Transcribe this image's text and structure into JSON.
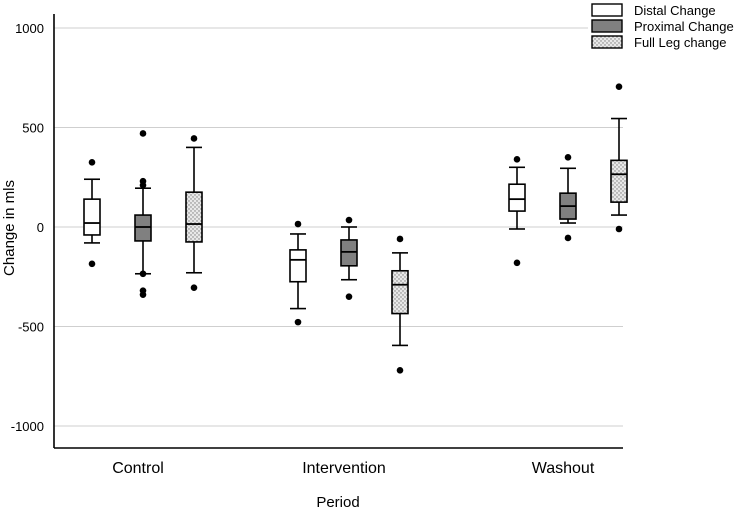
{
  "chart_data": {
    "type": "boxplot",
    "title": "",
    "xlabel": "Period",
    "ylabel": "Change in mls",
    "ylim": [
      -1100,
      1100
    ],
    "yticks": [
      1000,
      500,
      0,
      -500,
      -1000
    ],
    "ytick_labels": [
      "1000",
      "500",
      "0",
      "-500",
      "-1000"
    ],
    "grid": true,
    "legend_position": "top-right",
    "categories": [
      "Control",
      "Intervention",
      "Washout"
    ],
    "series": [
      {
        "name": "Distal Change",
        "fill": "#ffffff",
        "pattern": "none",
        "boxes": [
          {
            "whisker_low": -80,
            "q1": -40,
            "median": 20,
            "q3": 140,
            "whisker_high": 240,
            "outliers": [
              325,
              -185
            ]
          },
          {
            "whisker_low": -410,
            "q1": -275,
            "median": -165,
            "q3": -115,
            "whisker_high": -35,
            "outliers": [
              15,
              -478
            ]
          },
          {
            "whisker_low": -10,
            "q1": 80,
            "median": 140,
            "q3": 215,
            "whisker_high": 300,
            "outliers": [
              340,
              -180
            ]
          }
        ]
      },
      {
        "name": "Proximal Change",
        "fill": "#808080",
        "pattern": "none",
        "boxes": [
          {
            "whisker_low": -235,
            "q1": -70,
            "median": 0,
            "q3": 60,
            "whisker_high": 195,
            "outliers": [
              470,
              230,
              210,
              -235,
              -320,
              -340
            ]
          },
          {
            "whisker_low": -265,
            "q1": -195,
            "median": -125,
            "q3": -65,
            "whisker_high": 0,
            "outliers": [
              35,
              -350
            ]
          },
          {
            "whisker_low": 20,
            "q1": 40,
            "median": 105,
            "q3": 170,
            "whisker_high": 295,
            "outliers": [
              350,
              -55
            ]
          }
        ]
      },
      {
        "name": "Full Leg change",
        "fill": "#e6e6e6",
        "pattern": "dots",
        "boxes": [
          {
            "whisker_low": -230,
            "q1": -75,
            "median": 15,
            "q3": 175,
            "whisker_high": 400,
            "outliers": [
              445,
              -305
            ]
          },
          {
            "whisker_low": -595,
            "q1": -435,
            "median": -290,
            "q3": -220,
            "whisker_high": -130,
            "outliers": [
              -60,
              -720
            ]
          },
          {
            "whisker_low": 60,
            "q1": 125,
            "median": 265,
            "q3": 335,
            "whisker_high": 545,
            "outliers": [
              705,
              -10
            ]
          }
        ]
      }
    ]
  }
}
